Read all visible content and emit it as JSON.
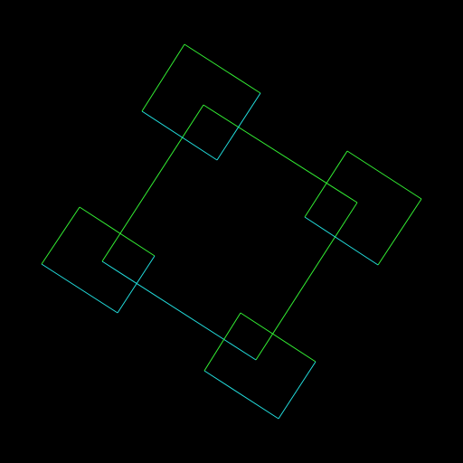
{
  "background": "#000000",
  "colors": {
    "green": "#33ee33",
    "cyan": "#22dddd"
  },
  "figure": {
    "description_visible_text": "",
    "shapes": [
      "central-rotated-square",
      "corner-square-top",
      "corner-square-right",
      "corner-square-bottom",
      "corner-square-left"
    ]
  }
}
